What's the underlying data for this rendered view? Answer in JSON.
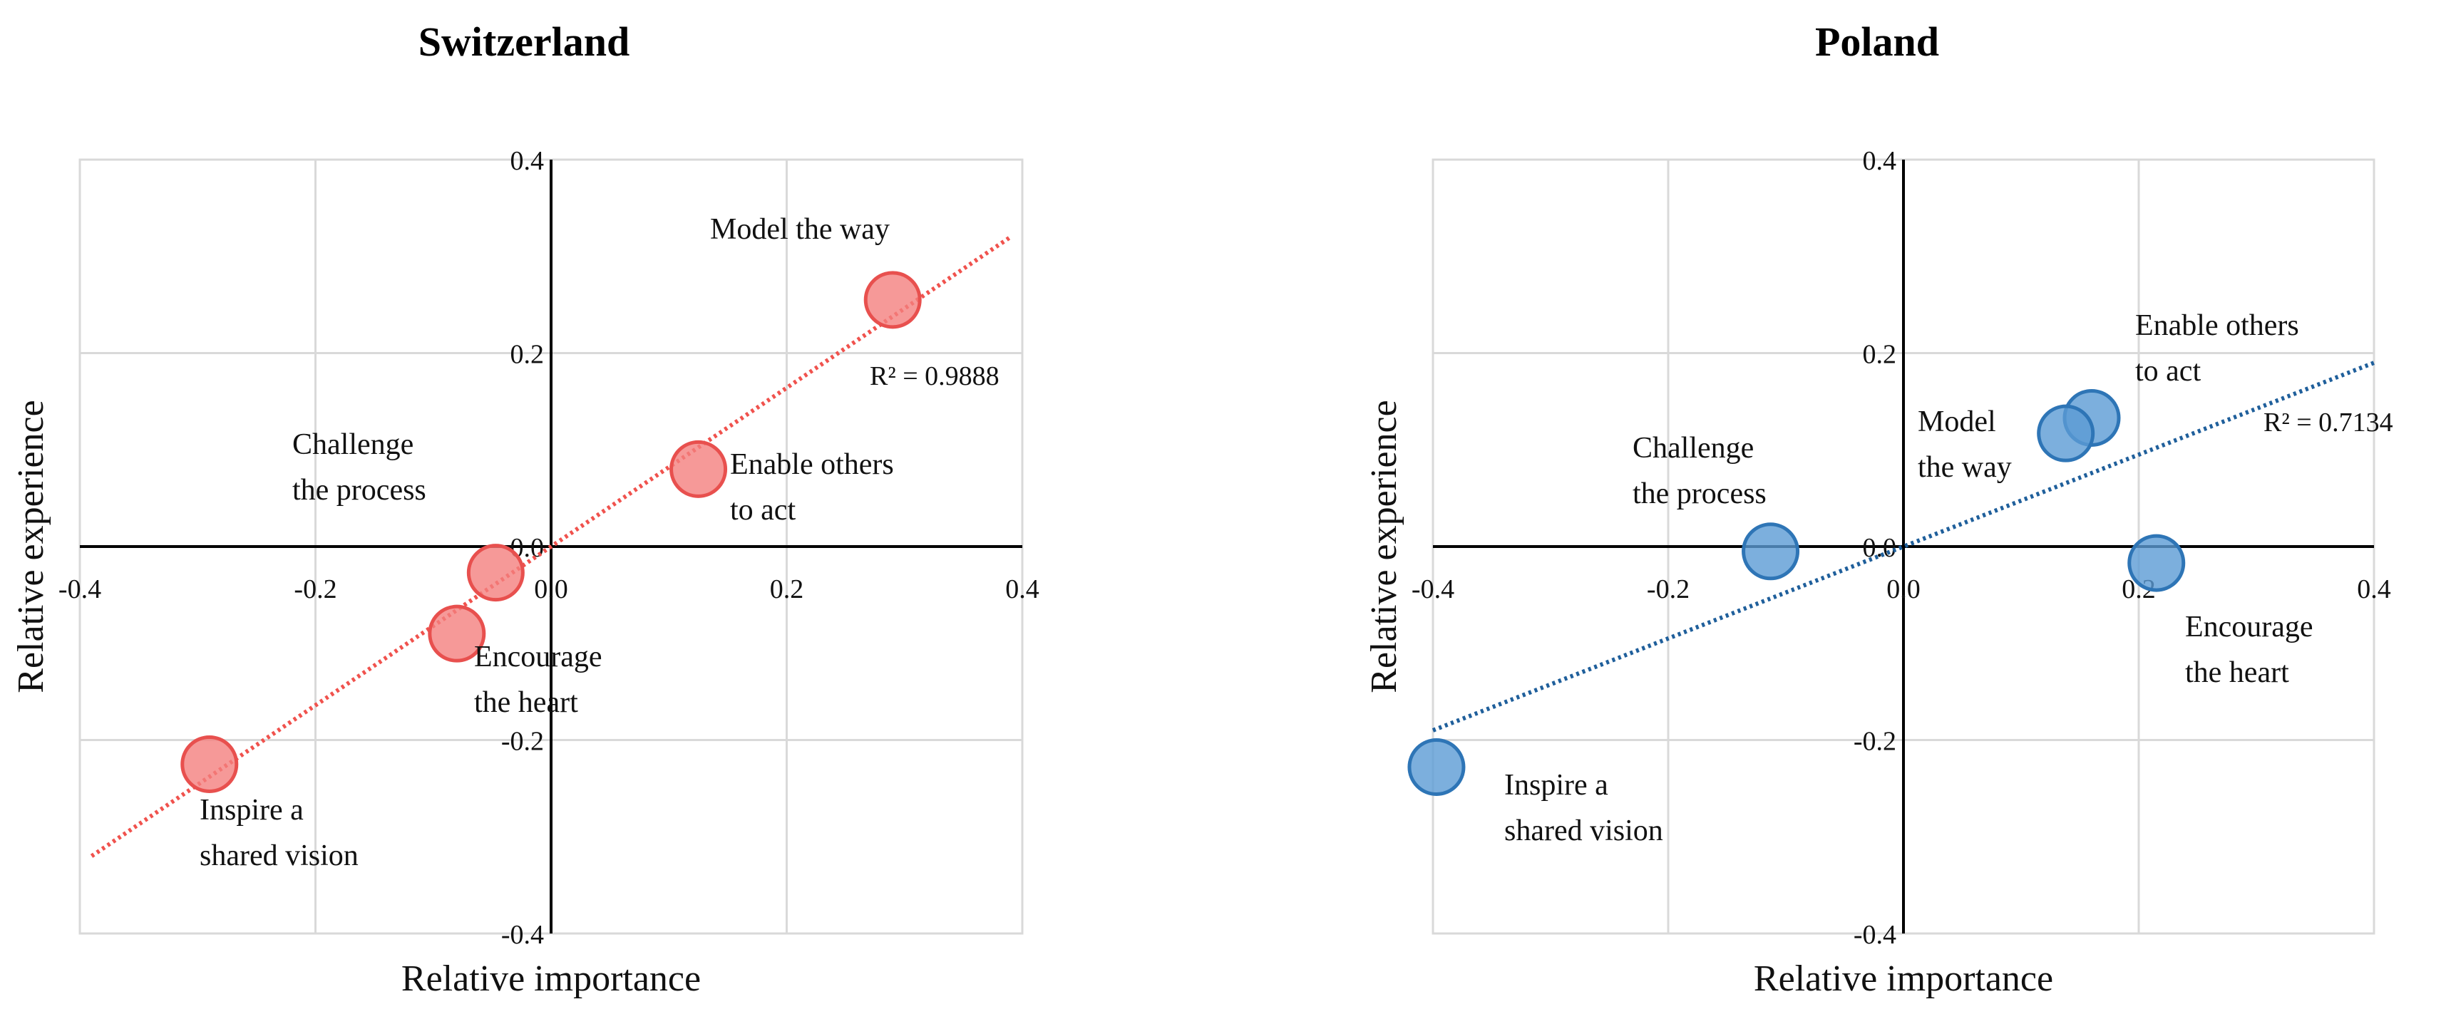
{
  "chart_data": [
    {
      "type": "scatter",
      "title": "Switzerland",
      "xlabel": "Relative importance",
      "ylabel": "Relative experience",
      "xlim": [
        -0.4,
        0.4
      ],
      "ylim": [
        -0.4,
        0.4
      ],
      "xticks": [
        "-0.4",
        "-0.2",
        "0.0",
        "0.2",
        "0.4"
      ],
      "yticks": [
        "0.4",
        "0.2",
        "0.0",
        "-0.2",
        "-0.4"
      ],
      "grid": true,
      "color": "#f4807e",
      "edge_color": "#e8504e",
      "trend_color": "#f0524d",
      "points": [
        {
          "label": "Model the way",
          "x": 0.29,
          "y": 0.255
        },
        {
          "label": "Enable others\nto act",
          "x": 0.125,
          "y": 0.08
        },
        {
          "label": "Challenge\nthe process",
          "x": -0.047,
          "y": -0.027
        },
        {
          "label": "Encourage\nthe heart",
          "x": -0.08,
          "y": -0.09
        },
        {
          "label": "Inspire a\nshared vision",
          "x": -0.29,
          "y": -0.225
        }
      ],
      "trendline": {
        "type": "linear",
        "x": [
          -0.39,
          0.39
        ],
        "y": [
          -0.32,
          0.32
        ],
        "r2_label": "R² = 0.9888"
      }
    },
    {
      "type": "scatter",
      "title": "Poland",
      "xlabel": "Relative importance",
      "ylabel": "Relative experience",
      "xlim": [
        -0.4,
        0.4
      ],
      "ylim": [
        -0.4,
        0.4
      ],
      "xticks": [
        "-0.4",
        "-0.2",
        "0.0",
        "0.2",
        "0.4"
      ],
      "yticks": [
        "0.4",
        "0.2",
        "0.0",
        "-0.2",
        "-0.4"
      ],
      "grid": true,
      "color": "#5b9bd5",
      "edge_color": "#2e75b6",
      "trend_color": "#1f5f9b",
      "points": [
        {
          "label": "Enable others\nto act",
          "x": 0.16,
          "y": 0.133
        },
        {
          "label": "Model\nthe way",
          "x": 0.138,
          "y": 0.117
        },
        {
          "label": "Challenge\nthe process",
          "x": -0.113,
          "y": -0.005
        },
        {
          "label": "Encourage\nthe heart",
          "x": 0.215,
          "y": -0.017
        },
        {
          "label": "Inspire a\nshared vision",
          "x": -0.397,
          "y": -0.228
        }
      ],
      "trendline": {
        "type": "linear",
        "x": [
          -0.4,
          0.4
        ],
        "y": [
          -0.19,
          0.19
        ],
        "r2_label": "R² = 0.7134"
      }
    }
  ]
}
